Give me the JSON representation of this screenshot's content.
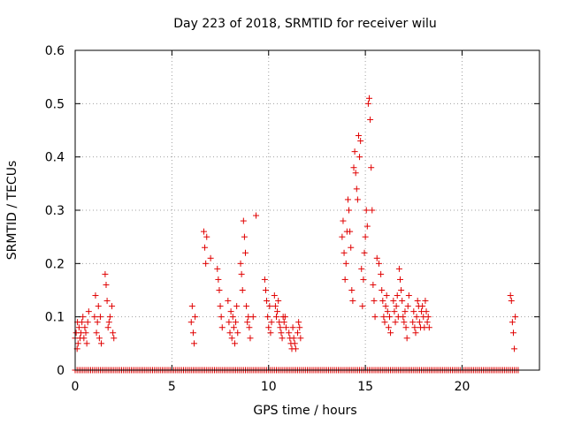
{
  "chart_data": {
    "type": "scatter",
    "title": "Day 223 of 2018, SRMTID for receiver wilu",
    "xlabel": "GPS time / hours",
    "ylabel": "SRMTID / TECUs",
    "xlim": [
      0,
      24
    ],
    "ylim": [
      0,
      0.6
    ],
    "xticks": [
      0,
      5,
      10,
      15,
      20
    ],
    "yticks": [
      0,
      0.1,
      0.2,
      0.3,
      0.4,
      0.5,
      0.6
    ],
    "xtick_labels": [
      "0",
      "5",
      "10",
      "15",
      "20"
    ],
    "ytick_labels": [
      "0",
      "0.1",
      "0.2",
      "0.3",
      "0.4",
      "0.5",
      "0.6"
    ],
    "grid": true,
    "marker": "plus",
    "color": "#e00000",
    "series": [
      {
        "name": "SRMTID",
        "points": [
          [
            0.0,
            0.06
          ],
          [
            0.05,
            0.07
          ],
          [
            0.1,
            0.04
          ],
          [
            0.12,
            0.09
          ],
          [
            0.15,
            0.05
          ],
          [
            0.2,
            0.08
          ],
          [
            0.25,
            0.06
          ],
          [
            0.3,
            0.07
          ],
          [
            0.35,
            0.09
          ],
          [
            0.4,
            0.1
          ],
          [
            0.45,
            0.06
          ],
          [
            0.5,
            0.08
          ],
          [
            0.55,
            0.07
          ],
          [
            0.6,
            0.05
          ],
          [
            0.65,
            0.09
          ],
          [
            0.7,
            0.11
          ],
          [
            1.0,
            0.1
          ],
          [
            1.05,
            0.14
          ],
          [
            1.1,
            0.07
          ],
          [
            1.15,
            0.09
          ],
          [
            1.2,
            0.12
          ],
          [
            1.25,
            0.06
          ],
          [
            1.3,
            0.1
          ],
          [
            1.35,
            0.05
          ],
          [
            1.55,
            0.18
          ],
          [
            1.6,
            0.16
          ],
          [
            1.65,
            0.13
          ],
          [
            1.7,
            0.08
          ],
          [
            1.75,
            0.09
          ],
          [
            1.8,
            0.1
          ],
          [
            1.9,
            0.12
          ],
          [
            1.95,
            0.07
          ],
          [
            2.0,
            0.06
          ],
          [
            6.0,
            0.09
          ],
          [
            6.05,
            0.12
          ],
          [
            6.1,
            0.07
          ],
          [
            6.15,
            0.05
          ],
          [
            6.2,
            0.1
          ],
          [
            6.65,
            0.26
          ],
          [
            6.7,
            0.23
          ],
          [
            6.75,
            0.2
          ],
          [
            6.8,
            0.25
          ],
          [
            7.0,
            0.21
          ],
          [
            7.35,
            0.19
          ],
          [
            7.4,
            0.17
          ],
          [
            7.45,
            0.15
          ],
          [
            7.5,
            0.12
          ],
          [
            7.55,
            0.1
          ],
          [
            7.6,
            0.08
          ],
          [
            7.9,
            0.13
          ],
          [
            7.95,
            0.09
          ],
          [
            8.0,
            0.07
          ],
          [
            8.05,
            0.11
          ],
          [
            8.1,
            0.06
          ],
          [
            8.15,
            0.1
          ],
          [
            8.2,
            0.08
          ],
          [
            8.25,
            0.05
          ],
          [
            8.3,
            0.09
          ],
          [
            8.35,
            0.12
          ],
          [
            8.4,
            0.07
          ],
          [
            8.55,
            0.2
          ],
          [
            8.6,
            0.18
          ],
          [
            8.65,
            0.15
          ],
          [
            8.7,
            0.28
          ],
          [
            8.75,
            0.25
          ],
          [
            8.8,
            0.22
          ],
          [
            8.85,
            0.12
          ],
          [
            8.9,
            0.09
          ],
          [
            8.95,
            0.1
          ],
          [
            9.0,
            0.08
          ],
          [
            9.05,
            0.06
          ],
          [
            9.2,
            0.1
          ],
          [
            9.35,
            0.29
          ],
          [
            9.8,
            0.17
          ],
          [
            9.85,
            0.15
          ],
          [
            9.9,
            0.13
          ],
          [
            9.95,
            0.1
          ],
          [
            10.0,
            0.08
          ],
          [
            10.05,
            0.12
          ],
          [
            10.1,
            0.07
          ],
          [
            10.15,
            0.09
          ],
          [
            10.3,
            0.14
          ],
          [
            10.35,
            0.12
          ],
          [
            10.4,
            0.1
          ],
          [
            10.45,
            0.11
          ],
          [
            10.5,
            0.13
          ],
          [
            10.55,
            0.09
          ],
          [
            10.6,
            0.08
          ],
          [
            10.65,
            0.07
          ],
          [
            10.7,
            0.06
          ],
          [
            10.75,
            0.1
          ],
          [
            10.8,
            0.09
          ],
          [
            10.85,
            0.1
          ],
          [
            10.9,
            0.08
          ],
          [
            11.05,
            0.07
          ],
          [
            11.1,
            0.06
          ],
          [
            11.15,
            0.05
          ],
          [
            11.2,
            0.04
          ],
          [
            11.25,
            0.08
          ],
          [
            11.3,
            0.06
          ],
          [
            11.35,
            0.05
          ],
          [
            11.4,
            0.04
          ],
          [
            11.5,
            0.07
          ],
          [
            11.55,
            0.09
          ],
          [
            11.6,
            0.08
          ],
          [
            11.65,
            0.06
          ],
          [
            13.8,
            0.25
          ],
          [
            13.85,
            0.28
          ],
          [
            13.9,
            0.22
          ],
          [
            13.95,
            0.17
          ],
          [
            14.0,
            0.2
          ],
          [
            14.05,
            0.26
          ],
          [
            14.1,
            0.32
          ],
          [
            14.15,
            0.3
          ],
          [
            14.2,
            0.26
          ],
          [
            14.25,
            0.23
          ],
          [
            14.3,
            0.15
          ],
          [
            14.35,
            0.13
          ],
          [
            14.4,
            0.38
          ],
          [
            14.45,
            0.41
          ],
          [
            14.5,
            0.37
          ],
          [
            14.55,
            0.34
          ],
          [
            14.6,
            0.32
          ],
          [
            14.65,
            0.44
          ],
          [
            14.7,
            0.4
          ],
          [
            14.75,
            0.43
          ],
          [
            14.8,
            0.19
          ],
          [
            14.85,
            0.12
          ],
          [
            14.9,
            0.17
          ],
          [
            14.95,
            0.22
          ],
          [
            15.0,
            0.25
          ],
          [
            15.05,
            0.3
          ],
          [
            15.1,
            0.27
          ],
          [
            15.15,
            0.5
          ],
          [
            15.2,
            0.51
          ],
          [
            15.25,
            0.47
          ],
          [
            15.3,
            0.38
          ],
          [
            15.35,
            0.3
          ],
          [
            15.4,
            0.16
          ],
          [
            15.45,
            0.13
          ],
          [
            15.5,
            0.1
          ],
          [
            15.6,
            0.21
          ],
          [
            15.7,
            0.2
          ],
          [
            15.8,
            0.18
          ],
          [
            15.85,
            0.15
          ],
          [
            15.9,
            0.13
          ],
          [
            15.95,
            0.1
          ],
          [
            16.0,
            0.09
          ],
          [
            16.05,
            0.12
          ],
          [
            16.1,
            0.14
          ],
          [
            16.15,
            0.11
          ],
          [
            16.2,
            0.08
          ],
          [
            16.25,
            0.1
          ],
          [
            16.3,
            0.07
          ],
          [
            16.45,
            0.13
          ],
          [
            16.5,
            0.11
          ],
          [
            16.55,
            0.09
          ],
          [
            16.6,
            0.12
          ],
          [
            16.65,
            0.14
          ],
          [
            16.7,
            0.1
          ],
          [
            16.75,
            0.19
          ],
          [
            16.8,
            0.17
          ],
          [
            16.85,
            0.15
          ],
          [
            16.9,
            0.13
          ],
          [
            16.95,
            0.1
          ],
          [
            17.0,
            0.09
          ],
          [
            17.05,
            0.11
          ],
          [
            17.1,
            0.08
          ],
          [
            17.15,
            0.06
          ],
          [
            17.2,
            0.12
          ],
          [
            17.25,
            0.14
          ],
          [
            17.45,
            0.09
          ],
          [
            17.5,
            0.11
          ],
          [
            17.55,
            0.08
          ],
          [
            17.6,
            0.07
          ],
          [
            17.65,
            0.1
          ],
          [
            17.7,
            0.13
          ],
          [
            17.75,
            0.12
          ],
          [
            17.8,
            0.09
          ],
          [
            17.85,
            0.08
          ],
          [
            17.9,
            0.11
          ],
          [
            17.95,
            0.12
          ],
          [
            18.0,
            0.1
          ],
          [
            18.05,
            0.08
          ],
          [
            18.1,
            0.13
          ],
          [
            18.15,
            0.11
          ],
          [
            18.2,
            0.09
          ],
          [
            18.25,
            0.1
          ],
          [
            18.3,
            0.08
          ],
          [
            22.5,
            0.14
          ],
          [
            22.55,
            0.13
          ],
          [
            22.6,
            0.09
          ],
          [
            22.65,
            0.07
          ],
          [
            22.7,
            0.04
          ],
          [
            22.75,
            0.1
          ]
        ]
      },
      {
        "name": "SRMTID baseline (0)",
        "x_range": [
          0,
          22.9
        ],
        "y": 0,
        "count": 230
      }
    ]
  }
}
